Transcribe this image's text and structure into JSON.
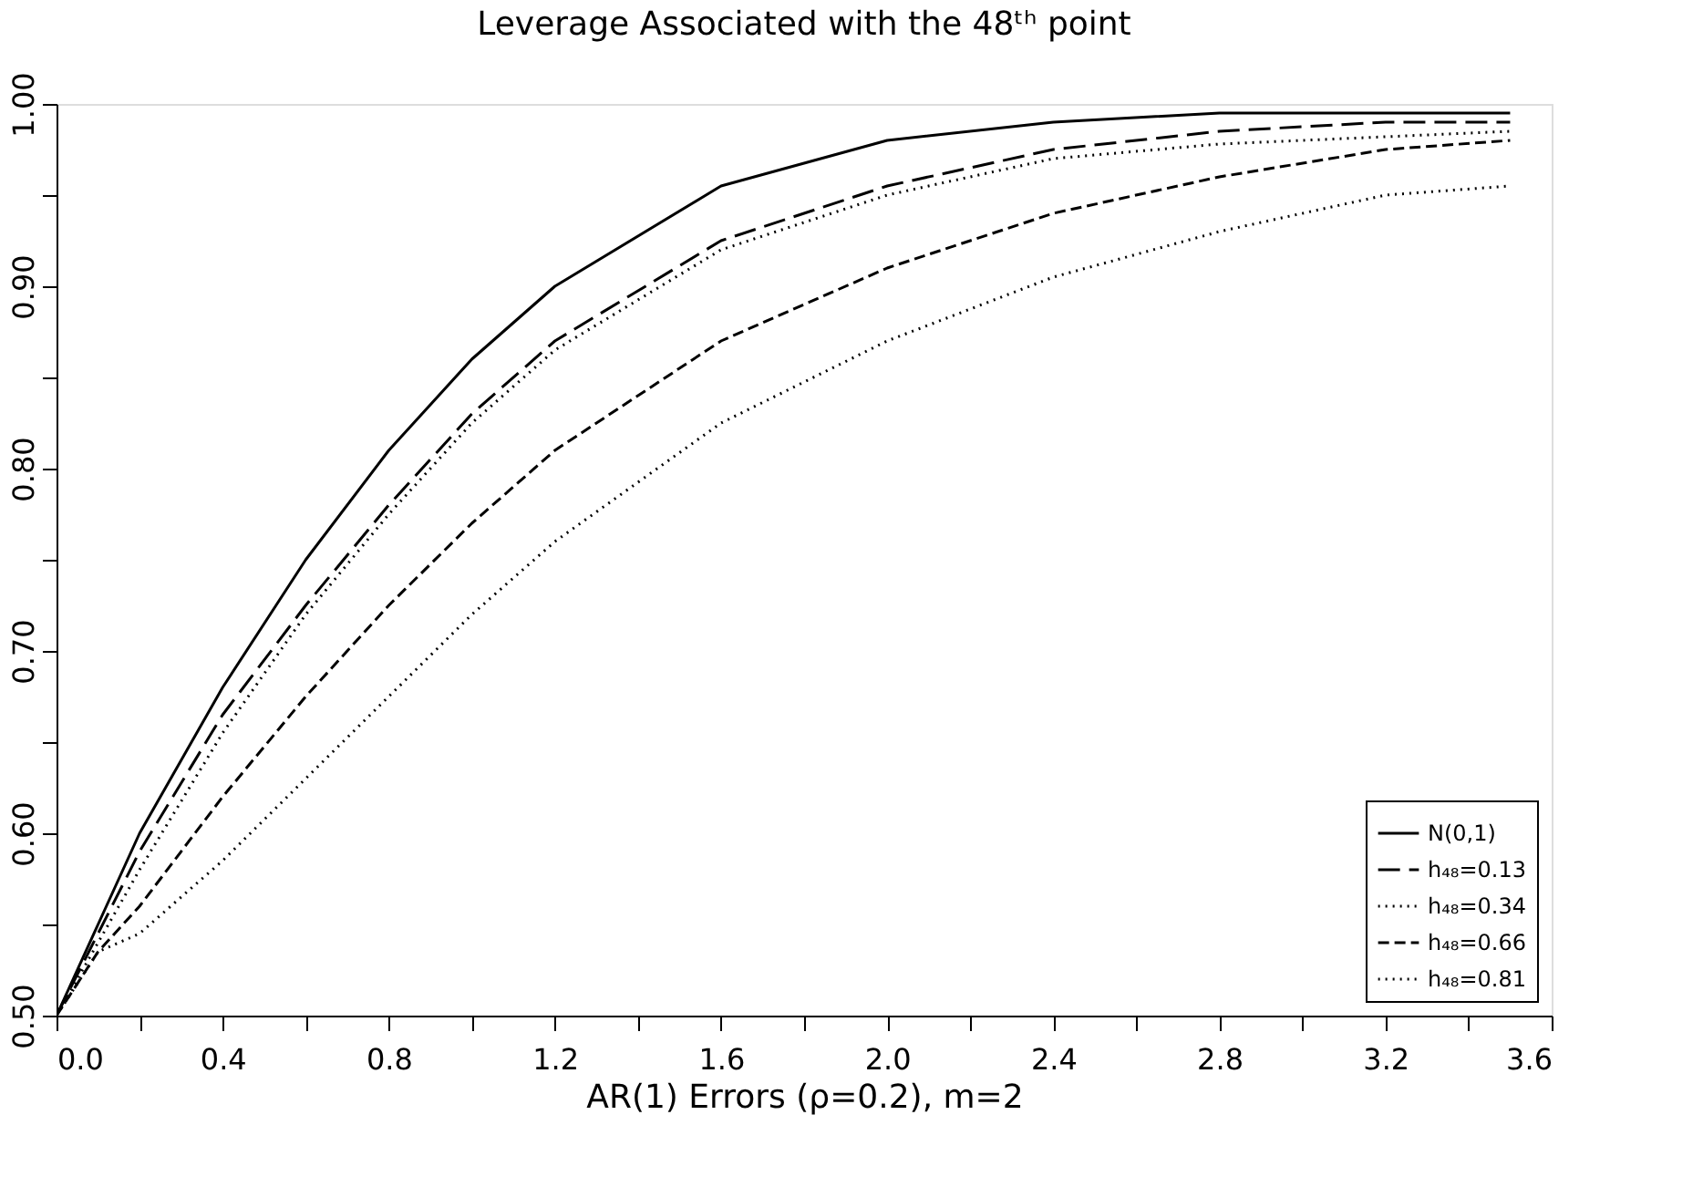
{
  "chart_data": {
    "type": "line",
    "title": "Leverage Associated with the 48ᵗʰ point",
    "xlabel": "AR(1) Errors (ρ=0.2), m=2",
    "x": [
      0,
      0.1,
      0.2,
      0.4,
      0.6,
      0.8,
      1.0,
      1.2,
      1.6,
      2.0,
      2.4,
      2.8,
      3.2,
      3.5
    ],
    "series": [
      {
        "name": "N(0,1)",
        "color": "#000000",
        "line_style": "solid",
        "values": [
          0.5,
          0.55,
          0.6,
          0.68,
          0.75,
          0.81,
          0.86,
          0.9,
          0.955,
          0.98,
          0.99,
          0.995,
          0.995,
          0.995
        ]
      },
      {
        "name": "h₄₈=0.13",
        "color": "#000000",
        "line_style": "longdash",
        "values": [
          0.5,
          0.545,
          0.59,
          0.665,
          0.725,
          0.78,
          0.83,
          0.87,
          0.925,
          0.955,
          0.975,
          0.985,
          0.99,
          0.99
        ]
      },
      {
        "name": "h₄₈=0.34",
        "color": "#000000",
        "line_style": "dotted",
        "values": [
          0.5,
          0.54,
          0.58,
          0.655,
          0.72,
          0.775,
          0.825,
          0.865,
          0.92,
          0.95,
          0.97,
          0.978,
          0.982,
          0.985
        ]
      },
      {
        "name": "h₄₈=0.66",
        "color": "#000000",
        "line_style": "dashed",
        "values": [
          0.5,
          0.535,
          0.56,
          0.62,
          0.675,
          0.725,
          0.77,
          0.81,
          0.87,
          0.91,
          0.94,
          0.96,
          0.975,
          0.98
        ]
      },
      {
        "name": "h₄₈=0.81",
        "color": "#000000",
        "line_style": "dotted",
        "values": [
          0.5,
          0.535,
          0.545,
          0.585,
          0.63,
          0.675,
          0.72,
          0.76,
          0.825,
          0.87,
          0.905,
          0.93,
          0.95,
          0.955
        ]
      }
    ],
    "xlim": [
      0,
      3.6
    ],
    "ylim": [
      0.5,
      1.0
    ],
    "xticks": [
      {
        "value": 0,
        "label": "0.0"
      },
      {
        "value": 0.2,
        "label": null
      },
      0.4,
      {
        "value": 0.6,
        "label": null
      },
      0.8,
      {
        "value": 1.0,
        "label": null
      },
      1.2,
      {
        "value": 1.4,
        "label": null
      },
      1.6,
      {
        "value": 1.8,
        "label": null
      },
      {
        "value": 2.0,
        "label": "2.0"
      },
      {
        "value": 2.2,
        "label": null
      },
      2.4,
      {
        "value": 2.6,
        "label": null
      },
      2.8,
      {
        "value": 3.0,
        "label": null
      },
      3.2,
      {
        "value": 3.4,
        "label": null
      },
      3.6
    ],
    "yticks": [
      {
        "value": 0.5,
        "label": "0.50"
      },
      {
        "value": 0.55,
        "label": null
      },
      {
        "value": 0.6,
        "label": "0.60"
      },
      {
        "value": 0.65,
        "label": null
      },
      {
        "value": 0.7,
        "label": "0.70"
      },
      {
        "value": 0.75,
        "label": null
      },
      {
        "value": 0.8,
        "label": "0.80"
      },
      {
        "value": 0.85,
        "label": null
      },
      {
        "value": 0.9,
        "label": "0.90"
      },
      {
        "value": 0.95,
        "label": null
      },
      {
        "value": 1.0,
        "label": "1.00"
      }
    ],
    "grid": false,
    "legend": "bottom right",
    "marker": "none"
  }
}
